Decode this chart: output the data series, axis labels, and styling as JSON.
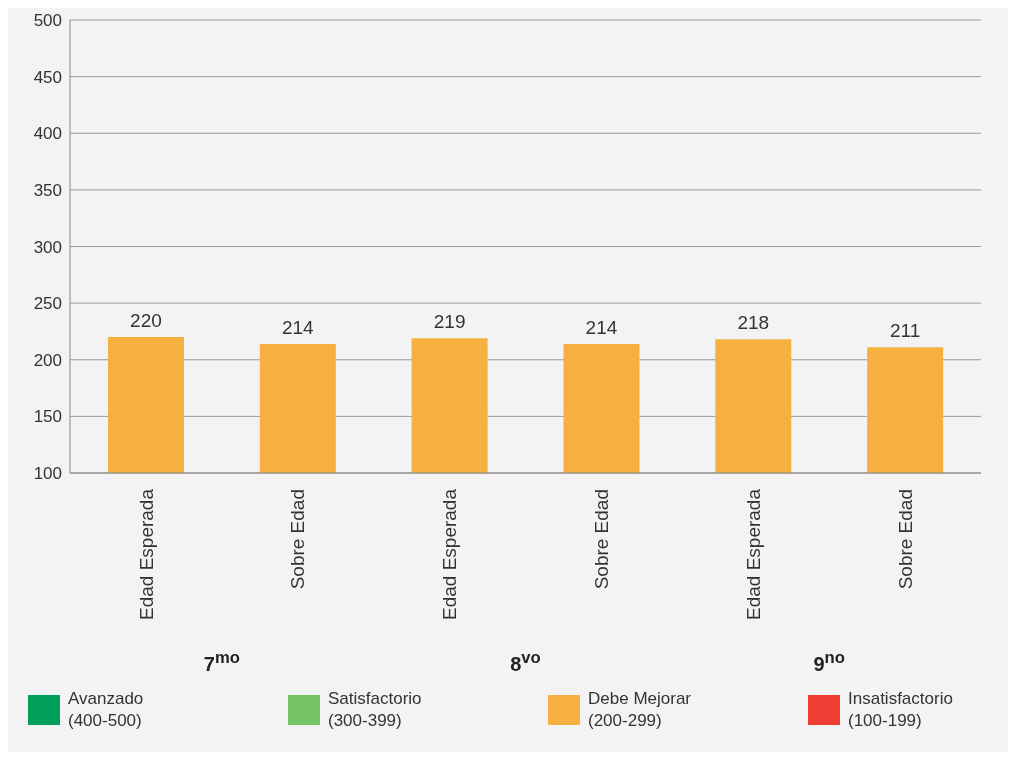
{
  "chart_data": {
    "type": "bar",
    "categories": [
      "Edad Esperada",
      "Sobre Edad",
      "Edad Esperada",
      "Sobre Edad",
      "Edad Esperada",
      "Sobre Edad"
    ],
    "series": [
      {
        "name": "Avanzado (400-500)",
        "color": "#00a05a",
        "values": [
          null,
          null,
          null,
          null,
          null,
          null
        ]
      },
      {
        "name": "Satisfactorio (300-399)",
        "color": "#74c365",
        "values": [
          null,
          null,
          null,
          null,
          null,
          null
        ]
      },
      {
        "name": "Debe Mejorar (200-299)",
        "color": "#f6b040",
        "values": [
          220,
          214,
          219,
          214,
          218,
          211
        ]
      },
      {
        "name": "Insatisfactorio (100-199)",
        "color": "#ee3e34",
        "values": [
          null,
          null,
          null,
          null,
          null,
          null
        ]
      }
    ],
    "stacked": true,
    "data_labels": true,
    "ylim": [
      100,
      500
    ],
    "yticks": [
      100,
      150,
      200,
      250,
      300,
      350,
      400,
      450,
      500
    ],
    "grid": "y",
    "legend": "bottom",
    "annotations": [
      "7$^{mo}$",
      "8$^{vo}$",
      "9$^{no}$"
    ]
  }
}
